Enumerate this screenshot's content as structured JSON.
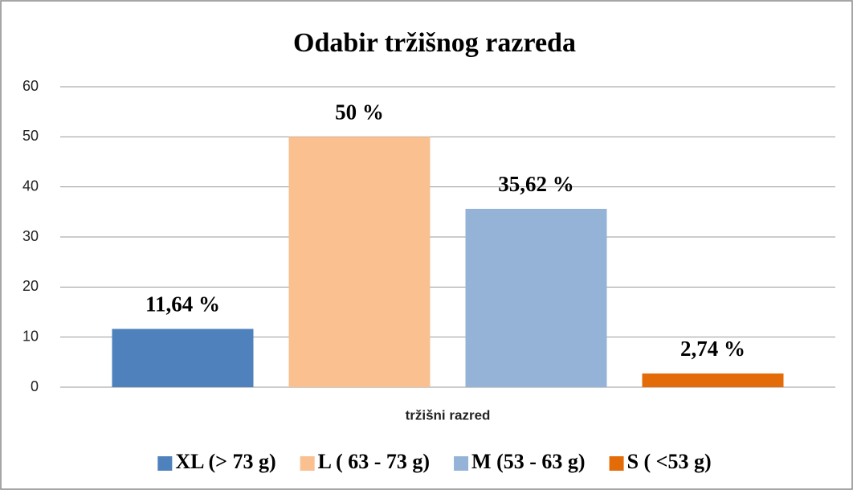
{
  "chart_data": {
    "type": "bar",
    "title": "Odabir tržišnog razreda",
    "categories": [
      "tržišni razred"
    ],
    "series": [
      {
        "name": "XL (> 73 g)",
        "color": "#4f81bd",
        "values": [
          11.64
        ],
        "value_labels": [
          "11,64 %"
        ]
      },
      {
        "name": "L ( 63 - 73 g)",
        "color": "#fac090",
        "values": [
          50
        ],
        "value_labels": [
          "50 %"
        ]
      },
      {
        "name": "M (53 - 63 g)",
        "color": "#95b3d7",
        "values": [
          35.62
        ],
        "value_labels": [
          "35,62 %"
        ]
      },
      {
        "name": "S ( <53 g)",
        "color": "#e36c09",
        "values": [
          2.74
        ],
        "value_labels": [
          "2,74 %"
        ]
      }
    ],
    "ylim": [
      0,
      60
    ],
    "yticks": [
      0,
      10,
      20,
      30,
      40,
      50,
      60
    ],
    "grid": true,
    "legend": "bottom"
  }
}
